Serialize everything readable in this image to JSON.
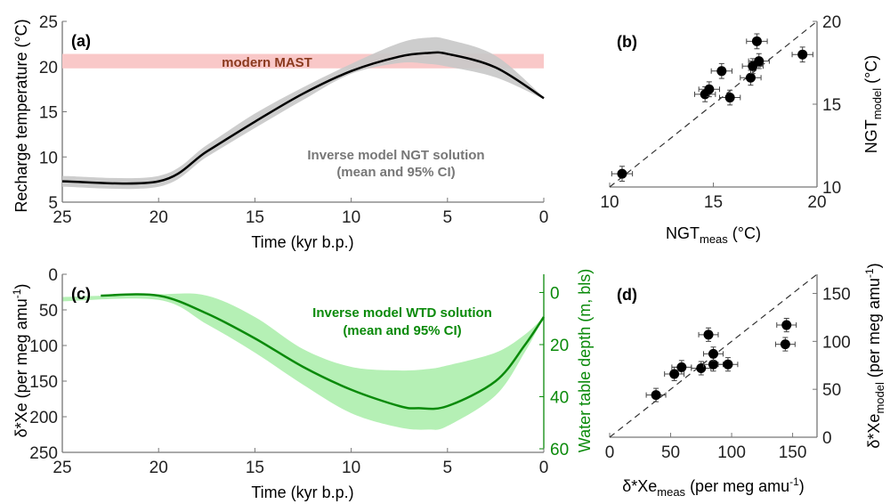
{
  "colors": {
    "axis": "#777777",
    "mean_a": "#000000",
    "band_a": "#c8c8c8",
    "mast": "#f9c8c8",
    "mast_text": "#8b3a1e",
    "green": "#0a8a0a",
    "band_c": "#b5f0b5",
    "label_a": "#777777",
    "point": "#000000"
  },
  "chart_data": [
    {
      "panel": "(a)",
      "type": "area",
      "xlabel": "Time (kyr b.p.)",
      "ylabel": "Recharge temperature (°C)",
      "xlim": [
        25,
        0
      ],
      "ylim": [
        5,
        25
      ],
      "xticks": [
        25,
        20,
        15,
        10,
        5,
        0
      ],
      "yticks": [
        5,
        10,
        15,
        20,
        25
      ],
      "band_label": "modern MAST",
      "band_range": [
        19.8,
        21.4
      ],
      "annotation": [
        "Inverse model NGT solution",
        "(mean and  95% CI)"
      ],
      "x": [
        25,
        20,
        17.5,
        15,
        12.5,
        10,
        7.5,
        6,
        5,
        2.5,
        0
      ],
      "mean": [
        7.3,
        7.3,
        10.6,
        13.9,
        17.0,
        19.5,
        21.1,
        21.5,
        21.4,
        19.9,
        16.5
      ],
      "ci_low": [
        6.7,
        6.7,
        10.0,
        13.2,
        16.3,
        19.2,
        20.4,
        20.3,
        20.0,
        18.8,
        16.4
      ],
      "ci_high": [
        7.9,
        7.9,
        11.3,
        14.8,
        17.7,
        20.3,
        22.6,
        23.2,
        23.0,
        21.2,
        16.6
      ]
    },
    {
      "panel": "(b)",
      "type": "scatter",
      "xlabel": "NGT",
      "xlabel_sub": "meas",
      "xlabel_unit": " (°C)",
      "ylabel": "NGT",
      "ylabel_sub": "model",
      "ylabel_unit": " (°C)",
      "xlim": [
        10,
        20
      ],
      "ylim": [
        10,
        20
      ],
      "xticks": [
        10,
        15,
        20
      ],
      "yticks": [
        10,
        15,
        20
      ],
      "one_to_one": true,
      "points": [
        [
          10.6,
          10.8
        ],
        [
          14.6,
          15.6
        ],
        [
          14.8,
          15.9
        ],
        [
          15.8,
          15.4
        ],
        [
          15.4,
          17.0
        ],
        [
          16.8,
          16.6
        ],
        [
          16.9,
          17.3
        ],
        [
          17.2,
          17.6
        ],
        [
          17.1,
          18.8
        ],
        [
          19.3,
          18.0
        ]
      ],
      "xerr": 0.5,
      "yerr": 0.45
    },
    {
      "panel": "(c)",
      "type": "area",
      "xlabel": "Time (kyr b.p.)",
      "ylabel": "δ*Xe (per meg amu",
      "ylabel_sup": "-1",
      "ylabel_end": ")",
      "y2label": "Water table depth (m, bls)",
      "xlim": [
        25,
        0
      ],
      "ylim": [
        0,
        250
      ],
      "y2lim": [
        -7,
        60
      ],
      "xticks": [
        25,
        20,
        15,
        10,
        5,
        0
      ],
      "yticks": [
        0,
        50,
        100,
        150,
        200,
        250
      ],
      "y2ticks": [
        0,
        20,
        40,
        60
      ],
      "annotation": [
        "Inverse model WTD solution",
        "(mean and  95% CI)"
      ],
      "x_mean": [
        23,
        20,
        17.5,
        15,
        12.5,
        10,
        7.5,
        6.5,
        5,
        2.5,
        1,
        0
      ],
      "mean": [
        30,
        30,
        55,
        90,
        130,
        162,
        185,
        188,
        185,
        150,
        100,
        60
      ],
      "x_band": [
        25,
        20,
        17.5,
        15,
        12.5,
        10,
        7.5,
        6,
        5,
        2.5,
        1,
        0
      ],
      "ci_low": [
        32,
        28,
        30,
        60,
        105,
        130,
        135,
        133,
        128,
        110,
        85,
        60
      ],
      "ci_high": [
        38,
        36,
        70,
        110,
        155,
        195,
        215,
        218,
        213,
        170,
        110,
        60
      ]
    },
    {
      "panel": "(d)",
      "type": "scatter",
      "xlabel": "δ*Xe",
      "xlabel_sub": "meas",
      "xlabel_unit": " (per meg amu",
      "xlabel_sup": "-1",
      "ylabel": "δ*Xe",
      "ylabel_sub": "model",
      "ylabel_unit": " (per meg amu",
      "ylabel_sup": "-1",
      "xlim": [
        0,
        170
      ],
      "ylim": [
        0,
        170
      ],
      "xticks": [
        0,
        50,
        100,
        150
      ],
      "yticks": [
        0,
        50,
        100,
        150
      ],
      "one_to_one": true,
      "points": [
        [
          38,
          44
        ],
        [
          53,
          66
        ],
        [
          59,
          73
        ],
        [
          75,
          72
        ],
        [
          85,
          76
        ],
        [
          85,
          87
        ],
        [
          81,
          107
        ],
        [
          97,
          76
        ],
        [
          145,
          117
        ],
        [
          144,
          97
        ]
      ],
      "xerr": 8,
      "yerr": 7
    }
  ]
}
